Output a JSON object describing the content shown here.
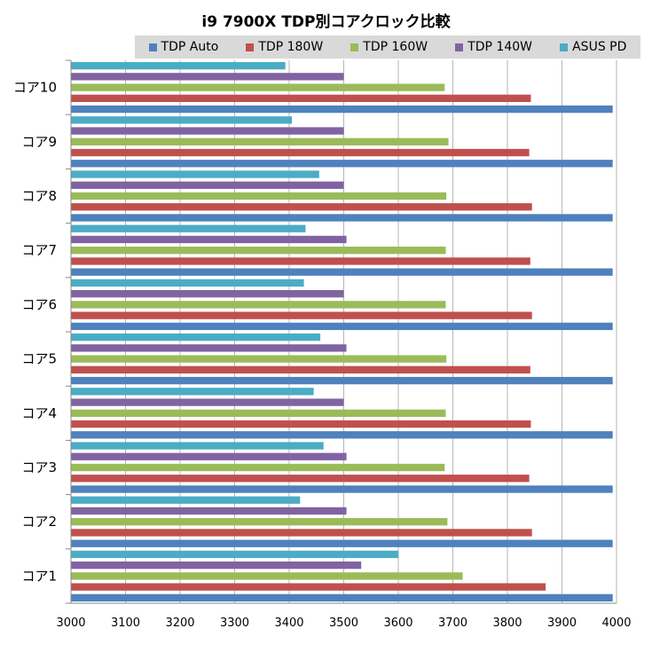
{
  "chart_data": {
    "type": "bar",
    "orientation": "horizontal",
    "title": "i9 7900X TDP別コアクロック比較",
    "categories": [
      "コア1",
      "コア2",
      "コア3",
      "コア4",
      "コア5",
      "コア6",
      "コア7",
      "コア8",
      "コア9",
      "コア10"
    ],
    "series": [
      {
        "name": "ASUS PD",
        "color": "#4bacc6",
        "values": [
          3600,
          3420,
          3463,
          3445,
          3457,
          3427,
          3430,
          3455,
          3405,
          3393
        ]
      },
      {
        "name": "TDP 140W",
        "color": "#8064a2",
        "values": [
          3532,
          3505,
          3505,
          3500,
          3505,
          3500,
          3505,
          3500,
          3500,
          3500
        ]
      },
      {
        "name": "TDP 160W",
        "color": "#9bbb59",
        "values": [
          3718,
          3690,
          3685,
          3687,
          3688,
          3687,
          3687,
          3688,
          3692,
          3685
        ]
      },
      {
        "name": "TDP 180W",
        "color": "#c0504d",
        "values": [
          3870,
          3845,
          3840,
          3843,
          3842,
          3845,
          3842,
          3845,
          3840,
          3843
        ]
      },
      {
        "name": "TDP Auto",
        "color": "#4f81bd",
        "values": [
          3993,
          3993,
          3993,
          3993,
          3993,
          3993,
          3993,
          3993,
          3993,
          3993
        ]
      }
    ],
    "xlim": [
      3000,
      4000
    ],
    "xticks": [
      3000,
      3100,
      3200,
      3300,
      3400,
      3500,
      3600,
      3700,
      3800,
      3900,
      4000
    ],
    "grid": true,
    "legend_position": "top"
  }
}
